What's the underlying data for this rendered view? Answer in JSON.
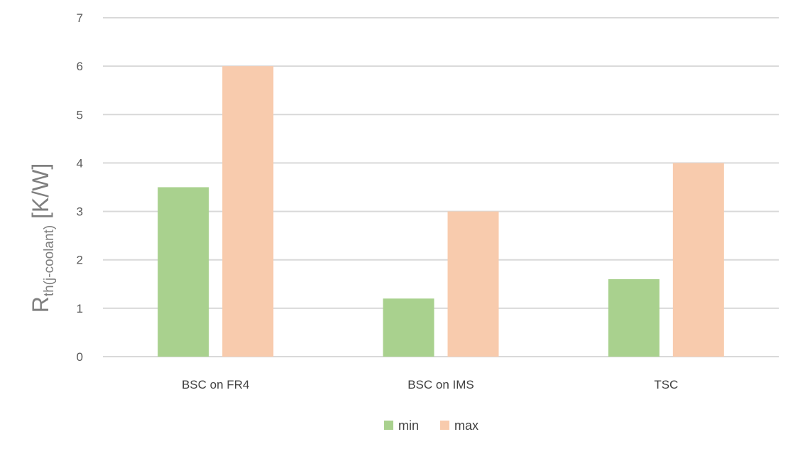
{
  "chart_data": {
    "type": "bar",
    "title": "",
    "xlabel": "",
    "ylabel": {
      "main": "R",
      "subscript": "th(j-coolant)",
      "unit": " [K/W]"
    },
    "categories": [
      "BSC on FR4",
      "BSC on IMS",
      "TSC"
    ],
    "series": [
      {
        "name": "min",
        "values": [
          3.5,
          1.2,
          1.6
        ],
        "color": "#a9d18e"
      },
      {
        "name": "max",
        "values": [
          6,
          3,
          4
        ],
        "color": "#f8cbad"
      }
    ],
    "ylim": [
      0,
      7
    ],
    "yticks": [
      0,
      1,
      2,
      3,
      4,
      5,
      6,
      7
    ],
    "grid": true,
    "gridColor": "#d9d9d9",
    "legend": "bottom"
  }
}
